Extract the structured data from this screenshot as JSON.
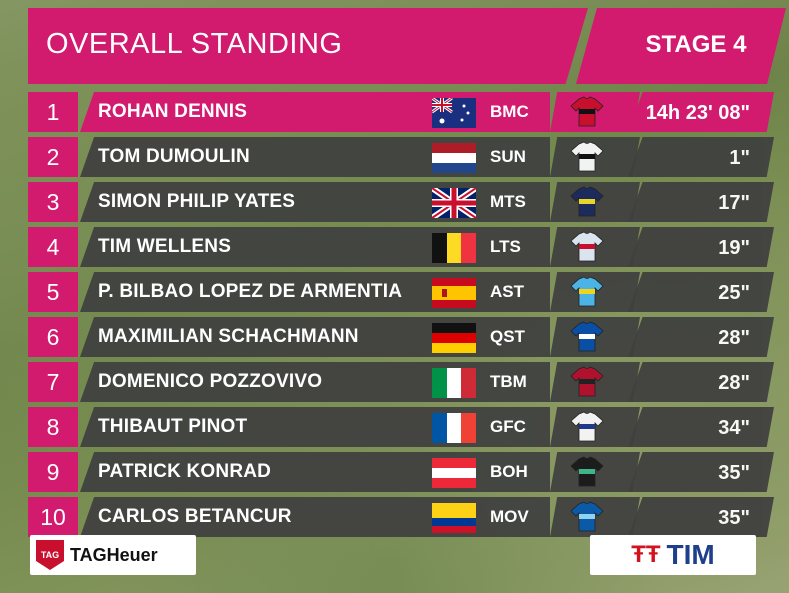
{
  "header": {
    "title": "OVERALL STANDING",
    "stage": "STAGE 4",
    "accent_color": "#d21a6e"
  },
  "riders": [
    {
      "pos": "1",
      "name": "ROHAN DENNIS",
      "flag": "australia-flag-icon",
      "team": "BMC",
      "jersey": "bmc-jersey-icon",
      "time": "14h 23' 08\""
    },
    {
      "pos": "2",
      "name": "TOM DUMOULIN",
      "flag": "netherlands-flag-icon",
      "team": "SUN",
      "jersey": "sunweb-jersey-icon",
      "time": "1\""
    },
    {
      "pos": "3",
      "name": "SIMON PHILIP YATES",
      "flag": "uk-flag-icon",
      "team": "MTS",
      "jersey": "mitchelton-jersey-icon",
      "time": "17\""
    },
    {
      "pos": "4",
      "name": "TIM WELLENS",
      "flag": "belgium-flag-icon",
      "team": "LTS",
      "jersey": "lotto-jersey-icon",
      "time": "19\""
    },
    {
      "pos": "5",
      "name": "P. BILBAO LOPEZ DE ARMENTIA",
      "flag": "spain-flag-icon",
      "team": "AST",
      "jersey": "astana-jersey-icon",
      "time": "25\""
    },
    {
      "pos": "6",
      "name": "MAXIMILIAN SCHACHMANN",
      "flag": "germany-flag-icon",
      "team": "QST",
      "jersey": "quickstep-jersey-icon",
      "time": "28\""
    },
    {
      "pos": "7",
      "name": "DOMENICO POZZOVIVO",
      "flag": "italy-flag-icon",
      "team": "TBM",
      "jersey": "bahrain-jersey-icon",
      "time": "28\""
    },
    {
      "pos": "8",
      "name": "THIBAUT PINOT",
      "flag": "france-flag-icon",
      "team": "GFC",
      "jersey": "groupama-jersey-icon",
      "time": "34\""
    },
    {
      "pos": "9",
      "name": "PATRICK KONRAD",
      "flag": "austria-flag-icon",
      "team": "BOH",
      "jersey": "bora-jersey-icon",
      "time": "35\""
    },
    {
      "pos": "10",
      "name": "CARLOS BETANCUR",
      "flag": "colombia-flag-icon",
      "team": "MOV",
      "jersey": "movistar-jersey-icon",
      "time": "35\""
    }
  ],
  "sponsors": {
    "left": "TAGHeuer",
    "left_badge": "TAG",
    "right": "TIM",
    "right_mark": "ŦŦ"
  }
}
